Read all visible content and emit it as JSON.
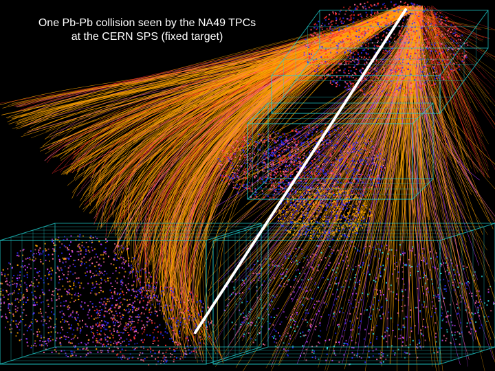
{
  "caption": {
    "line1": "One Pb-Pb collision seen by the NA49 TPCs",
    "line2": "at the CERN SPS (fixed target)"
  },
  "colors": {
    "background": "#000000",
    "caption_text": "#ffffff",
    "tpc_outline": "#20d0d0",
    "beam_line": "#ffffff",
    "track_red": "#ff2a2a",
    "track_orange": "#ffa500",
    "track_blue": "#2a2aff",
    "track_pink": "#ff6fa0",
    "track_magenta": "#c040ff",
    "track_cyan": "#30e0e0"
  },
  "scene": {
    "subject": "particle-tracks-event-display",
    "detectors": [
      "vertex-tpc-1",
      "vertex-tpc-2",
      "main-tpc-left",
      "main-tpc-right"
    ]
  }
}
